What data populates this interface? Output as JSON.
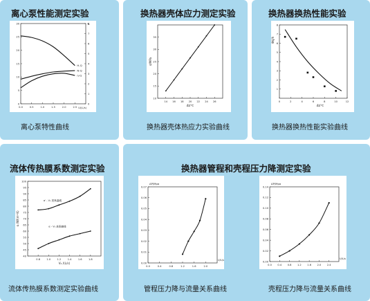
{
  "top": {
    "titles": [
      "离心泵性能测定实验",
      "换热器壳体应力测定实验",
      "换热器换热性能实验"
    ],
    "captions": [
      "离心泵特性曲线",
      "换热器壳体热应力实验曲线",
      "换热器换热性能实验曲线"
    ]
  },
  "bottom": {
    "titles": [
      "流体传热膜系数测定实验",
      "换热器管程和壳程压力降测定实验"
    ],
    "captions": [
      "流体传热膜系数测定实验曲线",
      "管程压力降与流量关系曲线",
      "壳程压力降与流量关系曲线"
    ]
  },
  "chart_data": [
    {
      "type": "line",
      "x": [
        0.0,
        0.5,
        1.0,
        1.5,
        2.0,
        2.5
      ],
      "xlim": [
        0,
        3.0
      ],
      "xticks": [
        "0.0",
        "0.5",
        "1.0",
        "1.5",
        "2.0",
        "2.5"
      ],
      "xlabel": "U/(L/s)",
      "yticks_left": [
        "30",
        "25",
        "20",
        "15",
        "10",
        "5",
        "0"
      ],
      "yticks_right": [
        "8",
        "7",
        "6",
        "5",
        "4",
        "3",
        "2",
        "1",
        "0"
      ],
      "yunit_right": "%",
      "series": [
        {
          "name": "H-Q",
          "values": [
            25.4,
            24.8,
            23.5,
            21.3,
            18.0,
            14.3
          ]
        },
        {
          "name": "N-Q",
          "values": [
            9.2,
            10.3,
            11.2,
            11.9,
            12.2,
            12.4
          ]
        },
        {
          "name": "η-Q",
          "values": [
            6.0,
            8.6,
            10.3,
            11.2,
            11.4,
            10.6
          ]
        }
      ]
    },
    {
      "type": "line",
      "x": [
        14,
        16,
        18,
        20,
        22,
        24,
        26
      ],
      "xlim": [
        12,
        28
      ],
      "ylim": [
        10,
        40
      ],
      "xticks": [
        "14",
        "16",
        "18",
        "20",
        "22",
        "24",
        "26"
      ],
      "yticks": [
        "10",
        "15",
        "20",
        "25",
        "30",
        "35"
      ],
      "xlabel": "Δt/℃",
      "ylabel": "σ/MPa",
      "series": [
        {
          "name": "",
          "values": [
            13,
            17.5,
            22,
            26.5,
            31,
            35.5,
            40
          ]
        }
      ]
    },
    {
      "type": "scatter",
      "x": [
        1,
        3,
        5,
        7,
        9,
        11
      ],
      "xlim": [
        0,
        12
      ],
      "ylim": [
        0,
        8
      ],
      "xticks": [
        "0",
        "2",
        "4",
        "6",
        "8",
        "10",
        "12"
      ],
      "yticks": [
        "1",
        "2",
        "3",
        "4",
        "5",
        "6",
        "7",
        "8"
      ],
      "xlabel": "Δt/℃",
      "ylabel": "ΦkJ/h",
      "points": [
        [
          1,
          6.7
        ],
        [
          3,
          6.5
        ],
        [
          5,
          2.8
        ],
        [
          6,
          2.3
        ],
        [
          8,
          1.3
        ],
        [
          10,
          0.8
        ]
      ],
      "fit": [
        [
          1,
          7.5
        ],
        [
          3,
          5.6
        ],
        [
          5,
          4.0
        ],
        [
          7,
          2.7
        ],
        [
          9,
          1.6
        ],
        [
          11,
          0.8
        ]
      ]
    },
    {
      "type": "line",
      "x": [
        0.8,
        1.0,
        1.2,
        1.4,
        1.6,
        1.8
      ],
      "xlim": [
        0.6,
        2.0
      ],
      "ylim": [
        40,
        100
      ],
      "xticks": [
        "0.8",
        "1.0",
        "1.2",
        "1.4",
        "1.6",
        "1.8"
      ],
      "yticks": [
        "40",
        "45",
        "50",
        "55",
        "60",
        "65",
        "70",
        "75",
        "80",
        "85",
        "90",
        "95",
        "100"
      ],
      "xlabel": "V₀ /(L/s)",
      "ylabel": "α /W/(m²·K)",
      "series": [
        {
          "name": "α' - V₀ 关系曲线",
          "values": [
            77,
            78,
            81,
            84,
            88,
            94
          ]
        },
        {
          "name": "α - V₀ 关系曲线",
          "values": [
            46,
            50,
            53,
            56,
            58,
            60
          ]
        }
      ]
    },
    {
      "type": "line",
      "x": [
        1.2,
        1.4,
        1.6,
        1.8,
        2.0
      ],
      "xlim": [
        0.0,
        2.4
      ],
      "ylim": [
        0,
        0.07
      ],
      "xticks": [
        "0.0",
        "0.4",
        "0.8",
        "1.2",
        "1.6",
        "2.0"
      ],
      "yticks": [
        "0.00",
        "0.01",
        "0.02",
        "0.03",
        "0.04",
        "0.05",
        "0.06",
        "0.07"
      ],
      "xlabel": "U/L/s",
      "ylabel": "ΔP/Mpa",
      "series": [
        {
          "name": "",
          "values": [
            0.008,
            0.02,
            0.029,
            0.039,
            0.059
          ]
        }
      ]
    },
    {
      "type": "line",
      "x": [
        0.4,
        0.8,
        1.2,
        1.6,
        2.0,
        2.4
      ],
      "xlim": [
        0.0,
        2.8
      ],
      "ylim": [
        0,
        0.14
      ],
      "xticks": [
        "0.0",
        "0.4",
        "0.8",
        "1.2",
        "1.6",
        "2.0",
        "2.4"
      ],
      "yticks": [
        "0.00",
        "0.02",
        "0.04",
        "0.06",
        "0.08",
        "0.10",
        "0.12",
        "0.14"
      ],
      "xlabel": "U/L/s",
      "ylabel": "ΔP/Mpa",
      "series": [
        {
          "name": "",
          "values": [
            0.01,
            0.02,
            0.033,
            0.05,
            0.072,
            0.11
          ]
        }
      ]
    }
  ]
}
